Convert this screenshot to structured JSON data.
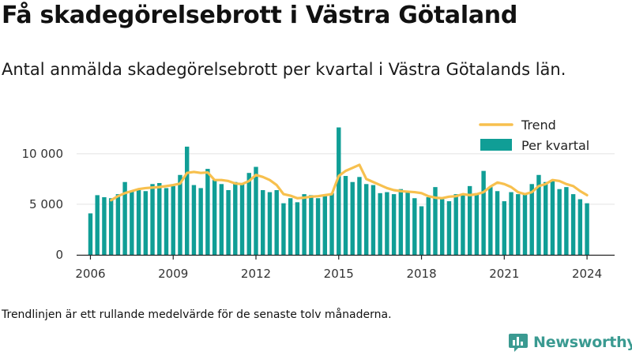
{
  "title": "Få skadegörelsebrott i Västra Götaland",
  "subtitle": "Antal anmälda skadegörelsebrott per kvartal i Västra Götalands län.",
  "note": "Trendlinjen är ett rullande medelvärde för de senaste tolv månaderna.",
  "brand": {
    "name": "Newsworthy",
    "color": "#3a9a91",
    "logo_icon": "bar-chart-logo-icon"
  },
  "colors": {
    "bar": "#109e96",
    "trend": "#f7c04e",
    "grid": "#e3e3e3",
    "axis": "#222222"
  },
  "chart_data": {
    "type": "bar",
    "x_start": 2006.0,
    "x_step": 0.25,
    "xlim": [
      2005.5,
      2025.0
    ],
    "ylim": [
      0,
      13500
    ],
    "x_ticks": [
      {
        "value": 2006,
        "label": "2006"
      },
      {
        "value": 2009,
        "label": "2009"
      },
      {
        "value": 2012,
        "label": "2012"
      },
      {
        "value": 2015,
        "label": "2015"
      },
      {
        "value": 2018,
        "label": "2018"
      },
      {
        "value": 2021,
        "label": "2021"
      },
      {
        "value": 2024,
        "label": "2024"
      }
    ],
    "y_ticks": [
      {
        "value": 0,
        "label": "0"
      },
      {
        "value": 5000,
        "label": "5 000"
      },
      {
        "value": 10000,
        "label": "10 000"
      }
    ],
    "grid": true,
    "legend_position": "top-right",
    "legend": [
      {
        "label": "Trend",
        "kind": "line"
      },
      {
        "label": "Per kvartal",
        "kind": "bar"
      }
    ],
    "series": [
      {
        "name": "Per kvartal",
        "type": "bar",
        "values": [
          4100,
          5900,
          5700,
          5600,
          6000,
          7200,
          6300,
          6400,
          6300,
          7000,
          7100,
          6600,
          6800,
          7900,
          10700,
          6900,
          6600,
          8500,
          7400,
          7000,
          6400,
          7200,
          7000,
          8100,
          8700,
          6400,
          6200,
          6400,
          5100,
          5600,
          5200,
          6000,
          5900,
          5600,
          5800,
          6100,
          12600,
          7800,
          7200,
          7700,
          7000,
          6900,
          6100,
          6200,
          6000,
          6500,
          6300,
          5600,
          4800,
          5700,
          6700,
          5500,
          5300,
          6000,
          5900,
          6800,
          6100,
          8300,
          6700,
          6300,
          5300,
          6200,
          6000,
          6100,
          7000,
          7900,
          7200,
          7300,
          6500,
          6700,
          6000,
          5500,
          5100
        ]
      },
      {
        "name": "Trend",
        "type": "line",
        "x": [
          2006.75,
          2007.0,
          2007.25,
          2007.5,
          2007.75,
          2008.0,
          2008.25,
          2008.5,
          2008.75,
          2009.0,
          2009.25,
          2009.5,
          2009.75,
          2010.0,
          2010.25,
          2010.5,
          2010.75,
          2011.0,
          2011.25,
          2011.5,
          2011.75,
          2012.0,
          2012.25,
          2012.5,
          2012.75,
          2013.0,
          2013.25,
          2013.5,
          2013.75,
          2014.0,
          2014.25,
          2014.5,
          2014.75,
          2015.0,
          2015.25,
          2015.5,
          2015.75,
          2016.0,
          2016.25,
          2016.5,
          2016.75,
          2017.0,
          2017.25,
          2017.5,
          2017.75,
          2018.0,
          2018.25,
          2018.5,
          2018.75,
          2019.0,
          2019.25,
          2019.5,
          2019.75,
          2020.0,
          2020.25,
          2020.5,
          2020.75,
          2021.0,
          2021.25,
          2021.5,
          2021.75,
          2022.0,
          2022.25,
          2022.5,
          2022.75,
          2023.0,
          2023.25,
          2023.5,
          2023.75,
          2024.0
        ],
        "values": [
          5400,
          5800,
          6100,
          6300,
          6500,
          6600,
          6650,
          6700,
          6800,
          6900,
          7050,
          8100,
          8200,
          8100,
          8150,
          7400,
          7400,
          7300,
          7050,
          7000,
          7300,
          7900,
          7700,
          7400,
          6900,
          6000,
          5850,
          5600,
          5650,
          5750,
          5800,
          5900,
          6000,
          7800,
          8300,
          8600,
          8900,
          7500,
          7200,
          6900,
          6600,
          6400,
          6300,
          6250,
          6200,
          6100,
          5800,
          5650,
          5600,
          5750,
          5800,
          6000,
          5900,
          6000,
          6200,
          6750,
          7150,
          7000,
          6700,
          6200,
          6000,
          6200,
          6800,
          7000,
          7400,
          7300,
          7000,
          6800,
          6300,
          5900
        ]
      }
    ]
  }
}
